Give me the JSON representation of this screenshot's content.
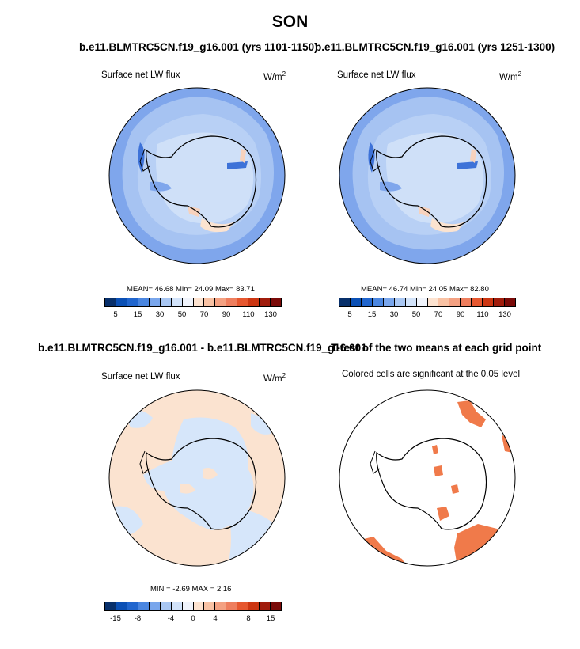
{
  "title": "SON",
  "panels": [
    {
      "title": "b.e11.BLMTRC5CN.f19_g16.001 (yrs 1101-1150)",
      "variable": "Surface net LW flux",
      "units": "W/m",
      "units_sup": "2",
      "stats": "MEAN=  46.68  Min=  24.09  Max=  83.71"
    },
    {
      "title": "b.e11.BLMTRC5CN.f19_g16.001 (yrs 1251-1300)",
      "variable": "Surface net LW flux",
      "units": "W/m",
      "units_sup": "2",
      "stats": "MEAN=  46.74  Min=  24.05  Max=  82.80"
    },
    {
      "title": "b.e11.BLMTRC5CN.f19_g16.001 - b.e11.BLMTRC5CN.f19_g16.001",
      "variable": "Surface net LW flux",
      "units": "W/m",
      "units_sup": "2",
      "stats": "MIN =  -2.69 MAX =   2.16"
    },
    {
      "title": "T-test of the two means at each grid point",
      "variable": "Colored cells are significant at the 0.05 level"
    }
  ],
  "colorbar_top": {
    "labels": [
      "5",
      "15",
      "30",
      "50",
      "70",
      "90",
      "110",
      "130"
    ],
    "colors": [
      "#08306b",
      "#0b50b5",
      "#2166ce",
      "#4a86e0",
      "#79a6ec",
      "#a9c7f3",
      "#d2e3fa",
      "#f0f4fc",
      "#fde3d0",
      "#f9c2a4",
      "#f4a182",
      "#ee7e5e",
      "#e6572f",
      "#cc3612",
      "#a01c0c",
      "#7a0a08"
    ]
  },
  "colorbar_diff": {
    "labels": [
      "-15",
      "-8",
      "-4",
      "0",
      "4",
      "8",
      "15"
    ],
    "colors": [
      "#08306b",
      "#0b50b5",
      "#2166ce",
      "#4a86e0",
      "#79a6ec",
      "#a9c7f3",
      "#d2e3fa",
      "#f0f4fc",
      "#fde3d0",
      "#f9c2a4",
      "#f4a182",
      "#ee7e5e",
      "#e6572f",
      "#cc3612",
      "#a01c0c",
      "#7a0a08"
    ]
  },
  "colors": {
    "ocean_outer": "#7fa6ec",
    "ocean_mid": "#a6c3f2",
    "ice": "#cfe0f8",
    "deep_blue": "#3d72d8",
    "warm": "#f7d2bd",
    "diff_blue": "#d6e6fa",
    "diff_orange": "#fbe3d0",
    "significant": "#f07a4a"
  }
}
